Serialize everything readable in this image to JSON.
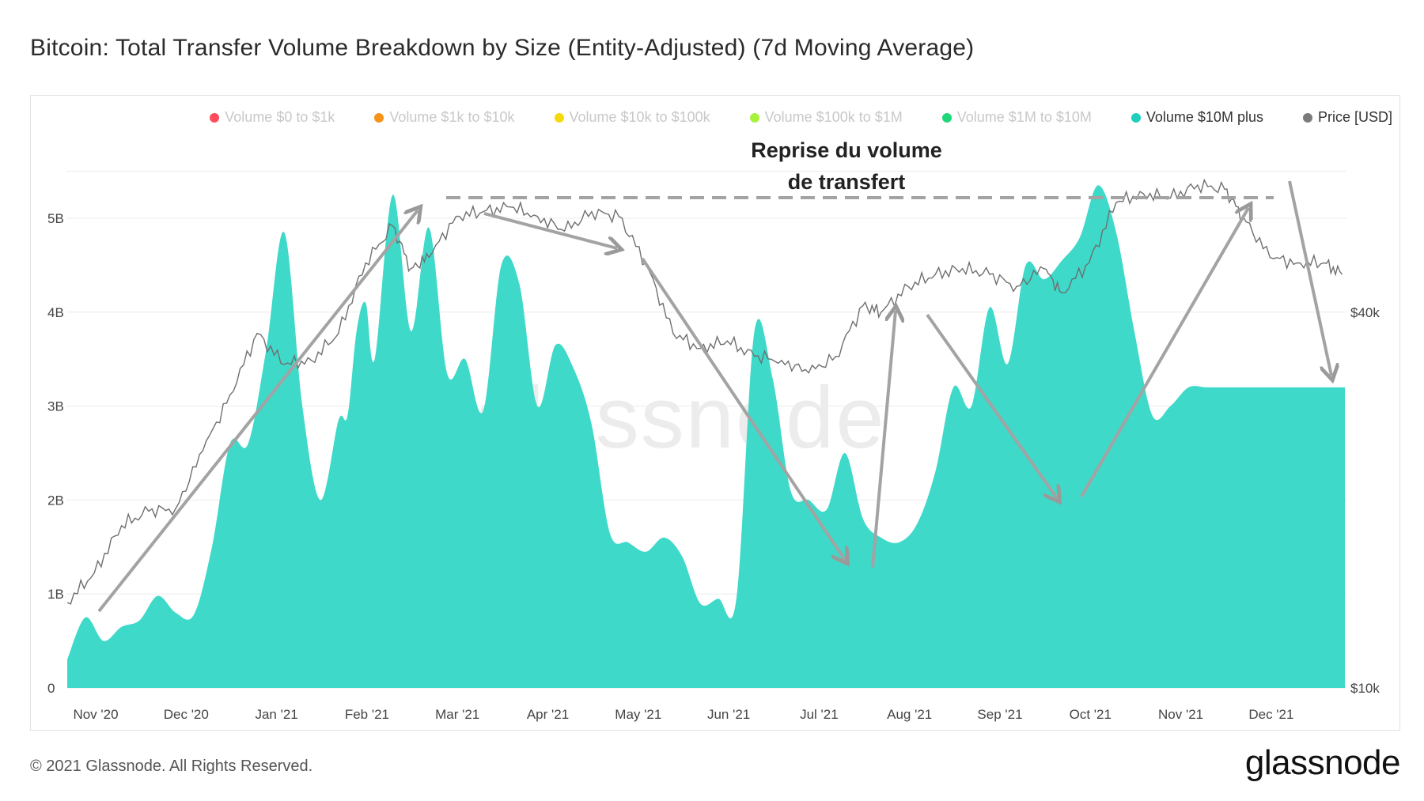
{
  "title": "Bitcoin: Total Transfer Volume Breakdown by Size (Entity-Adjusted) (7d Moving Average)",
  "footer": "© 2021 Glassnode. All Rights Reserved.",
  "brand": "glassnode",
  "watermark": "glassnode",
  "annotation": [
    "Reprise du volume",
    "de transfert"
  ],
  "legend": [
    {
      "label": "Volume $0 to $1k",
      "color": "#ff4b5c",
      "active": false
    },
    {
      "label": "Volume $1k to $10k",
      "color": "#f7931a",
      "active": false
    },
    {
      "label": "Volume $10k to $100k",
      "color": "#f5d90a",
      "active": false
    },
    {
      "label": "Volume $100k to $1M",
      "color": "#a6f23c",
      "active": false
    },
    {
      "label": "Volume $1M to $10M",
      "color": "#1fd679",
      "active": false
    },
    {
      "label": "Volume $10M plus",
      "color": "#1fcfbb",
      "active": true
    },
    {
      "label": "Price [USD]",
      "color": "#7a7a7a",
      "active": true
    }
  ],
  "chart_data": {
    "type": "area",
    "title": "Bitcoin: Total Transfer Volume Breakdown by Size (Entity-Adjusted) (7d Moving Average)",
    "x_ticks": [
      "Nov '20",
      "Dec '20",
      "Jan '21",
      "Feb '21",
      "Mar '21",
      "Apr '21",
      "May '21",
      "Jun '21",
      "Jul '21",
      "Aug '21",
      "Sep '21",
      "Oct '21",
      "Nov '21",
      "Dec '21"
    ],
    "y_left_ticks": [
      "0",
      "1B",
      "2B",
      "3B",
      "4B",
      "5B"
    ],
    "y_left_lim": [
      0,
      5.5
    ],
    "y_right_ticks": [
      "$10k",
      "$40k"
    ],
    "y_right_scale": "log",
    "grid": true,
    "legend_position": "top-right",
    "series": [
      {
        "name": "Volume $10M plus",
        "color": "#3ed9c9",
        "unit": "B",
        "x_month_index": [
          0,
          0.2,
          0.4,
          0.6,
          0.8,
          1,
          1.2,
          1.4,
          1.6,
          1.8,
          2,
          2.2,
          2.4,
          2.6,
          2.8,
          3,
          3.1,
          3.2,
          3.3,
          3.4,
          3.6,
          3.8,
          4,
          4.2,
          4.4,
          4.6,
          4.8,
          5,
          5.2,
          5.4,
          5.6,
          5.8,
          6,
          6.2,
          6.4,
          6.6,
          6.8,
          7,
          7.2,
          7.4,
          7.6,
          7.8,
          8,
          8.2,
          8.4,
          8.6,
          8.8,
          9,
          9.2,
          9.4,
          9.6,
          9.8,
          10,
          10.2,
          10.4,
          10.6,
          10.8,
          11,
          11.2,
          11.4,
          11.6,
          11.8,
          12,
          12.2,
          12.4,
          12.6,
          12.8,
          13,
          13.2,
          13.4,
          13.6,
          13.8,
          14,
          14.2
        ],
        "values": [
          0.3,
          0.75,
          0.5,
          0.65,
          0.72,
          0.98,
          0.8,
          0.78,
          1.5,
          2.6,
          2.6,
          3.6,
          4.85,
          3.0,
          2.0,
          2.85,
          2.9,
          3.8,
          4.1,
          3.5,
          5.25,
          3.8,
          4.9,
          3.35,
          3.5,
          2.95,
          4.5,
          4.3,
          3.0,
          3.65,
          3.4,
          2.8,
          1.65,
          1.55,
          1.45,
          1.6,
          1.4,
          0.9,
          0.95,
          0.95,
          3.8,
          3.3,
          2.1,
          2.0,
          1.9,
          2.5,
          1.8,
          1.6,
          1.55,
          1.75,
          2.3,
          3.2,
          3.0,
          4.05,
          3.45,
          4.5,
          4.35,
          4.55,
          4.8,
          5.35,
          4.85,
          3.8,
          2.9,
          3.0,
          3.2,
          3.2,
          3.2,
          3.2,
          3.2,
          3.2,
          3.2,
          3.2,
          3.2,
          3.2
        ]
      },
      {
        "name": "Price [USD]",
        "color": "#6f6f6f",
        "unit": "USD",
        "x_month_index": [
          0,
          0.3,
          0.6,
          0.9,
          1.2,
          1.5,
          1.8,
          2.1,
          2.4,
          2.7,
          3.0,
          3.3,
          3.6,
          3.8,
          4.0,
          4.3,
          4.6,
          4.9,
          5.2,
          5.5,
          5.8,
          6.1,
          6.4,
          6.7,
          7.0,
          7.3,
          7.6,
          7.9,
          8.2,
          8.5,
          8.8,
          9.0,
          9.3,
          9.6,
          9.9,
          10.2,
          10.5,
          10.8,
          11.0,
          11.3,
          11.6,
          11.9,
          12.2,
          12.5,
          12.8,
          13.0,
          13.3,
          13.6,
          13.9,
          14.1
        ],
        "values": [
          13700,
          15300,
          18200,
          19200,
          19400,
          24000,
          29500,
          37000,
          33000,
          33500,
          37000,
          48000,
          55000,
          47000,
          49000,
          57000,
          58000,
          59000,
          57000,
          54000,
          58000,
          57000,
          48000,
          37000,
          35000,
          36000,
          34000,
          33500,
          32000,
          34000,
          41000,
          40000,
          44000,
          46000,
          47000,
          46000,
          44000,
          47000,
          43000,
          48000,
          60000,
          62000,
          61000,
          64000,
          63000,
          57000,
          49000,
          48000,
          48000,
          46000
        ]
      }
    ]
  }
}
